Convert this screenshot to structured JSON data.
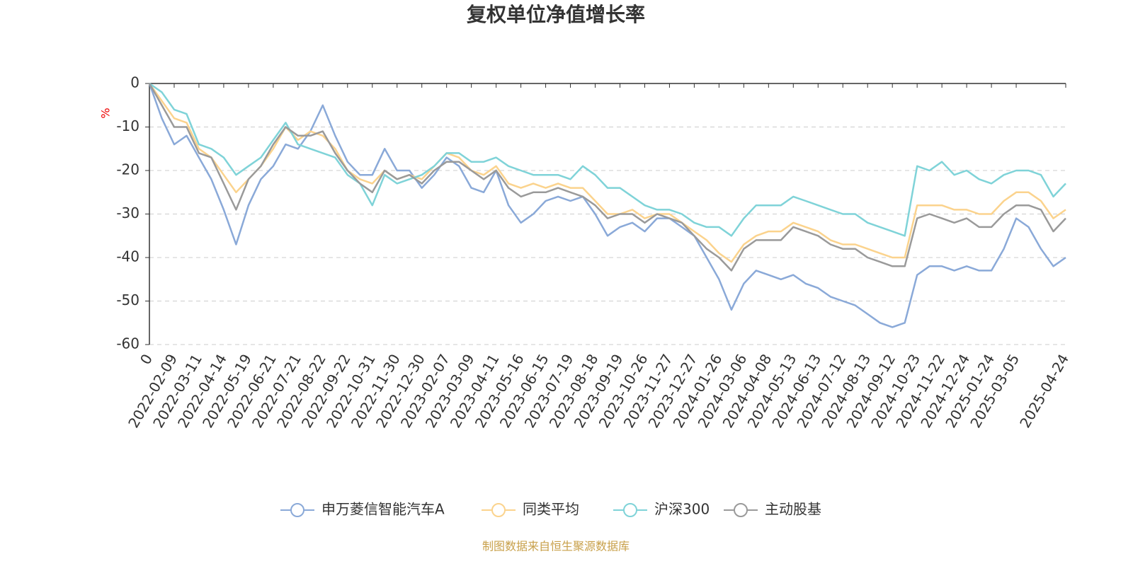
{
  "chart_data": {
    "type": "line",
    "title": "复权单位净值增长率",
    "y_label": "%",
    "source": "制图数据来自恒生聚源数据库",
    "categories": [
      "0",
      null,
      "2022-02-09",
      null,
      "2022-03-11",
      null,
      "2022-04-14",
      null,
      "2022-05-19",
      null,
      "2022-06-21",
      null,
      "2022-07-21",
      null,
      "2022-08-22",
      null,
      "2022-09-22",
      null,
      "2022-10-31",
      null,
      "2022-11-30",
      null,
      "2022-12-30",
      null,
      "2023-02-07",
      null,
      "2023-03-09",
      null,
      "2023-04-11",
      null,
      "2023-05-16",
      null,
      "2023-06-15",
      null,
      "2023-07-19",
      null,
      "2023-08-18",
      null,
      "2023-09-19",
      null,
      "2023-10-26",
      null,
      "2023-11-27",
      null,
      "2023-12-27",
      null,
      "2024-01-26",
      null,
      "2024-03-06",
      null,
      "2024-04-08",
      null,
      "2024-05-13",
      null,
      "2024-06-13",
      null,
      "2024-07-12",
      null,
      "2024-08-13",
      null,
      "2024-09-12",
      null,
      "2024-10-23",
      null,
      "2024-11-22",
      null,
      "2024-12-24",
      null,
      "2025-01-24",
      null,
      "2025-03-05",
      null,
      null,
      null,
      "2025-04-24"
    ],
    "series": [
      {
        "name": "申万菱信智能汽车A",
        "color": "#8aa9d8",
        "values": [
          0,
          -8,
          -14,
          -12,
          -17,
          -22,
          -29,
          -37,
          -28,
          -22,
          -19,
          -14,
          -15,
          -11,
          -5,
          -12,
          -18,
          -21,
          -21,
          -15,
          -20,
          -20,
          -24,
          -21,
          -17,
          -19,
          -24,
          -25,
          -20,
          -28,
          -32,
          -30,
          -27,
          -26,
          -27,
          -26,
          -30,
          -35,
          -33,
          -32,
          -34,
          -31,
          -31,
          -33,
          -35,
          -40,
          -45,
          -52,
          -46,
          -43,
          -44,
          -45,
          -44,
          -46,
          -47,
          -49,
          -50,
          -51,
          -53,
          -55,
          -56,
          -55,
          -44,
          -42,
          -42,
          -43,
          -42,
          -43,
          -43,
          -38,
          -31,
          -33,
          -38,
          -42,
          -40
        ]
      },
      {
        "name": "同类平均",
        "color": "#fbd38d",
        "values": [
          0,
          -4,
          -8,
          -9,
          -15,
          -17,
          -21,
          -25,
          -22,
          -19,
          -15,
          -10,
          -13,
          -11,
          -12,
          -15,
          -20,
          -22,
          -23,
          -20,
          -22,
          -21,
          -22,
          -19,
          -16,
          -17,
          -20,
          -21,
          -19,
          -23,
          -24,
          -23,
          -24,
          -23,
          -24,
          -24,
          -27,
          -30,
          -30,
          -29,
          -31,
          -30,
          -30,
          -32,
          -34,
          -36,
          -39,
          -41,
          -37,
          -35,
          -34,
          -34,
          -32,
          -33,
          -34,
          -36,
          -37,
          -37,
          -38,
          -39,
          -40,
          -40,
          -28,
          -28,
          -28,
          -29,
          -29,
          -30,
          -30,
          -27,
          -25,
          -25,
          -27,
          -31,
          -29
        ]
      },
      {
        "name": "沪深300",
        "color": "#7fd3d8",
        "values": [
          0,
          -2,
          -6,
          -7,
          -14,
          -15,
          -17,
          -21,
          -19,
          -17,
          -13,
          -9,
          -14,
          -15,
          -16,
          -17,
          -21,
          -23,
          -28,
          -21,
          -23,
          -22,
          -21,
          -19,
          -16,
          -16,
          -18,
          -18,
          -17,
          -19,
          -20,
          -21,
          -21,
          -21,
          -22,
          -19,
          -21,
          -24,
          -24,
          -26,
          -28,
          -29,
          -29,
          -30,
          -32,
          -33,
          -33,
          -35,
          -31,
          -28,
          -28,
          -28,
          -26,
          -27,
          -28,
          -29,
          -30,
          -30,
          -32,
          -33,
          -34,
          -35,
          -19,
          -20,
          -18,
          -21,
          -20,
          -22,
          -23,
          -21,
          -20,
          -20,
          -21,
          -26,
          -23
        ]
      },
      {
        "name": "主动股基",
        "color": "#9a9a9a",
        "values": [
          0,
          -5,
          -10,
          -10,
          -16,
          -17,
          -23,
          -29,
          -22,
          -19,
          -14,
          -10,
          -12,
          -12,
          -11,
          -16,
          -20,
          -23,
          -25,
          -20,
          -22,
          -21,
          -23,
          -20,
          -18,
          -18,
          -20,
          -22,
          -20,
          -24,
          -26,
          -25,
          -25,
          -24,
          -25,
          -26,
          -28,
          -31,
          -30,
          -30,
          -32,
          -30,
          -31,
          -32,
          -35,
          -38,
          -40,
          -43,
          -38,
          -36,
          -36,
          -36,
          -33,
          -34,
          -35,
          -37,
          -38,
          -38,
          -40,
          -41,
          -42,
          -42,
          -31,
          -30,
          -31,
          -32,
          -31,
          -33,
          -33,
          -30,
          -28,
          -28,
          -29,
          -34,
          -31
        ]
      }
    ],
    "ylim": [
      -60,
      0
    ],
    "yticks": [
      0,
      -10,
      -20,
      -30,
      -40,
      -50,
      -60
    ],
    "grid": true,
    "legend": "bottom"
  }
}
